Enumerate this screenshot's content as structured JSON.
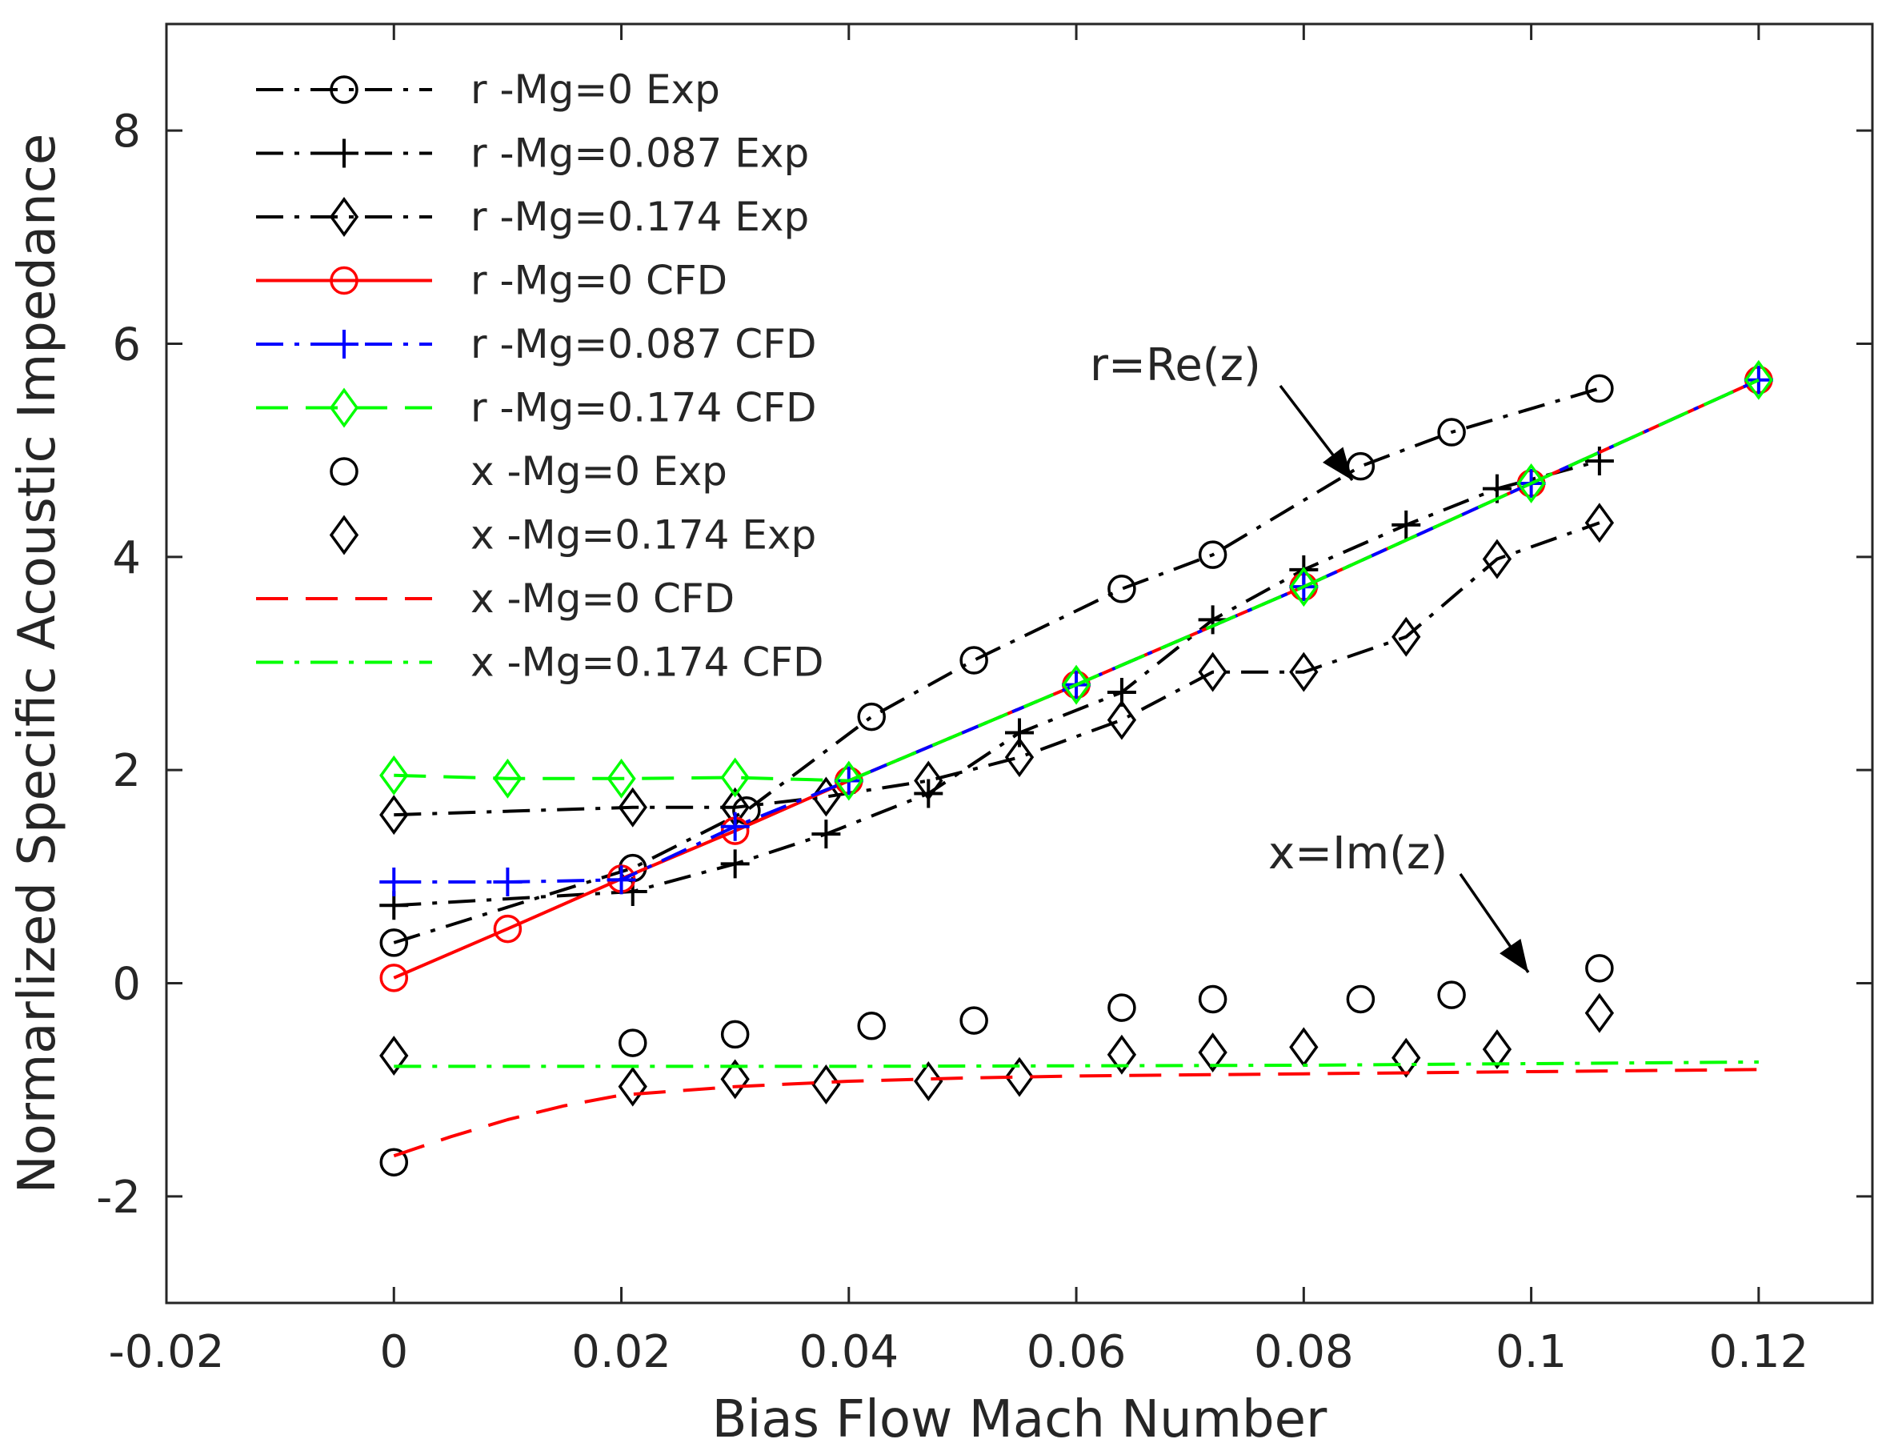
{
  "chart_data": {
    "type": "line",
    "title": "",
    "xlabel": "Bias Flow Mach Number",
    "ylabel": "Normarlized Specific Acoustic Impedance",
    "xlim": [
      -0.02,
      0.13
    ],
    "ylim": [
      -3,
      9
    ],
    "xticks": [
      -0.02,
      0,
      0.02,
      0.04,
      0.06,
      0.08,
      0.1,
      0.12
    ],
    "xtick_labels": [
      "-0.02",
      "0",
      "0.02",
      "0.04",
      "0.06",
      "0.08",
      "0.1",
      "0.12"
    ],
    "yticks": [
      -2,
      0,
      2,
      4,
      6,
      8
    ],
    "ytick_labels": [
      "-2",
      "0",
      "2",
      "4",
      "6",
      "8"
    ],
    "legend_position": "top-left",
    "annotations": [
      {
        "text": "r=Re(z)",
        "points_to": [
          0.083,
          4.8
        ]
      },
      {
        "text": "x=Im(z)",
        "points_to": [
          0.1,
          0.1
        ]
      }
    ],
    "series": [
      {
        "name": "r -Mg=0 Exp",
        "color": "#000000",
        "style": "dashdot",
        "marker": "circle",
        "x": [
          0,
          0.021,
          0.031,
          0.042,
          0.051,
          0.064,
          0.072,
          0.085,
          0.093,
          0.106
        ],
        "y": [
          0.38,
          1.08,
          1.62,
          2.5,
          3.03,
          3.7,
          4.02,
          4.85,
          5.17,
          5.58
        ]
      },
      {
        "name": "r -Mg=0.087 Exp",
        "color": "#000000",
        "style": "dashdot",
        "marker": "plus",
        "x": [
          0,
          0.021,
          0.03,
          0.038,
          0.047,
          0.055,
          0.064,
          0.072,
          0.08,
          0.089,
          0.097,
          0.106
        ],
        "y": [
          0.73,
          0.86,
          1.12,
          1.4,
          1.78,
          2.35,
          2.73,
          3.41,
          3.88,
          4.3,
          4.64,
          4.9
        ]
      },
      {
        "name": "r -Mg=0.174 Exp",
        "color": "#000000",
        "style": "dashdot",
        "marker": "diamond",
        "x": [
          0,
          0.021,
          0.03,
          0.038,
          0.047,
          0.055,
          0.064,
          0.072,
          0.08,
          0.089,
          0.097,
          0.106
        ],
        "y": [
          1.58,
          1.65,
          1.65,
          1.75,
          1.9,
          2.12,
          2.47,
          2.92,
          2.92,
          3.25,
          3.98,
          4.32
        ]
      },
      {
        "name": "r -Mg=0 CFD",
        "color": "#ff0000",
        "style": "solid",
        "marker": "circle",
        "x": [
          0,
          0.01,
          0.02,
          0.03,
          0.04,
          0.06,
          0.08,
          0.1,
          0.12
        ],
        "y": [
          0.05,
          0.51,
          0.98,
          1.43,
          1.9,
          2.8,
          3.72,
          4.69,
          5.66
        ]
      },
      {
        "name": "r -Mg=0.087 CFD",
        "color": "#0000ff",
        "style": "dashdot",
        "marker": "plus",
        "x": [
          0,
          0.01,
          0.02,
          0.03,
          0.04,
          0.06,
          0.08,
          0.1,
          0.12
        ],
        "y": [
          0.95,
          0.95,
          0.97,
          1.47,
          1.9,
          2.8,
          3.72,
          4.69,
          5.66
        ]
      },
      {
        "name": "r -Mg=0.174 CFD",
        "color": "#00ff00",
        "style": "dashed",
        "marker": "diamond",
        "x": [
          0,
          0.01,
          0.02,
          0.03,
          0.04,
          0.06,
          0.08,
          0.1,
          0.12
        ],
        "y": [
          1.95,
          1.92,
          1.92,
          1.93,
          1.9,
          2.8,
          3.72,
          4.69,
          5.66
        ]
      },
      {
        "name": "x -Mg=0 Exp",
        "color": "#000000",
        "style": "none",
        "marker": "circle",
        "x": [
          0,
          0.021,
          0.03,
          0.042,
          0.051,
          0.064,
          0.072,
          0.085,
          0.093,
          0.106
        ],
        "y": [
          -1.68,
          -0.56,
          -0.48,
          -0.4,
          -0.35,
          -0.23,
          -0.15,
          -0.15,
          -0.11,
          0.14
        ]
      },
      {
        "name": "x -Mg=0.174 Exp",
        "color": "#000000",
        "style": "none",
        "marker": "diamond",
        "x": [
          0,
          0.021,
          0.03,
          0.038,
          0.047,
          0.055,
          0.064,
          0.072,
          0.08,
          0.089,
          0.097,
          0.106
        ],
        "y": [
          -0.68,
          -0.97,
          -0.9,
          -0.95,
          -0.92,
          -0.88,
          -0.67,
          -0.65,
          -0.6,
          -0.7,
          -0.62,
          -0.28
        ]
      },
      {
        "name": "x -Mg=0 CFD",
        "color": "#ff0000",
        "style": "dashed",
        "marker": "none",
        "x": [
          0,
          0.005,
          0.01,
          0.015,
          0.02,
          0.03,
          0.04,
          0.05,
          0.06,
          0.08,
          0.1,
          0.12
        ],
        "y": [
          -1.62,
          -1.44,
          -1.28,
          -1.15,
          -1.05,
          -0.97,
          -0.92,
          -0.89,
          -0.87,
          -0.85,
          -0.83,
          -0.81
        ]
      },
      {
        "name": "x -Mg=0.174 CFD",
        "color": "#00ff00",
        "style": "dashdot",
        "marker": "none",
        "x": [
          0,
          0.04,
          0.08,
          0.12
        ],
        "y": [
          -0.78,
          -0.78,
          -0.77,
          -0.74
        ]
      }
    ]
  }
}
